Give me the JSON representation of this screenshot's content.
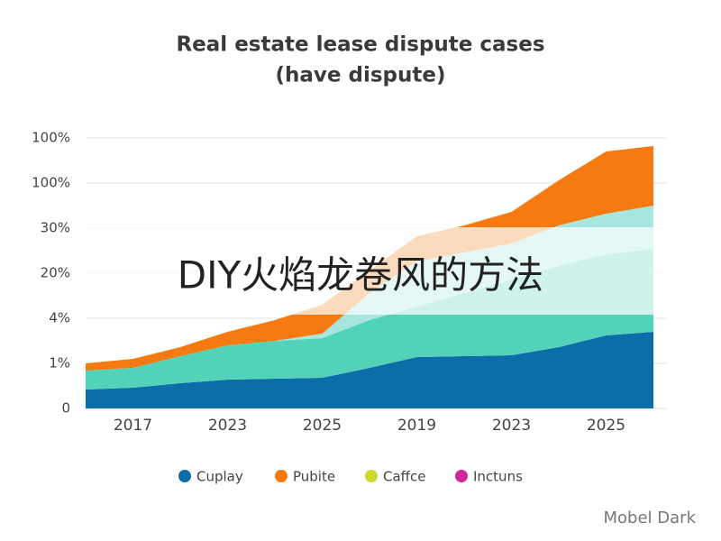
{
  "chart_data": {
    "type": "stacked_area",
    "title": [
      "Real estate lease dispute cases",
      "(have dispute)"
    ],
    "categories": [
      null,
      "2017",
      null,
      "2023",
      null,
      "2025",
      null,
      "2019",
      null,
      "2023",
      null,
      "2025",
      null
    ],
    "series": [
      {
        "name": "Cuplay",
        "color": "#0b6ea6",
        "legend_color": "#0b6ea6",
        "values": [
          0.42,
          0.46,
          0.56,
          0.64,
          0.66,
          0.68,
          0.9,
          1.14,
          1.16,
          1.18,
          1.36,
          1.62,
          1.7
        ]
      },
      {
        "name": "Pubite",
        "color": "#f57a12",
        "legend_color": "#f57a12",
        "values": [
          0.16,
          0.2,
          0.2,
          0.3,
          0.46,
          0.64,
          0.5,
          0.56,
          0.6,
          0.7,
          1.0,
          1.38,
          1.32
        ]
      },
      {
        "name": "Caffce",
        "color": "#52d3b9",
        "legend_color": "#cad830",
        "values": [
          0.42,
          0.44,
          0.6,
          0.76,
          0.84,
          0.88,
          1.06,
          1.12,
          1.4,
          1.68,
          1.8,
          1.8,
          1.84
        ]
      },
      {
        "name": "Inctuns",
        "color": "#a6e6df",
        "legend_color": "#d4259a",
        "values": [
          0,
          0,
          0,
          0,
          0,
          0.1,
          0.6,
          1.0,
          0.9,
          0.8,
          0.9,
          0.9,
          0.96
        ]
      }
    ],
    "stack_order": [
      0,
      2,
      3,
      1
    ],
    "ylim": [
      0,
      6
    ],
    "yticks": [
      0,
      {
        "value": 1,
        "label": "1%"
      },
      {
        "value": 2,
        "label": "4%"
      },
      {
        "value": 3,
        "label": "20%"
      },
      {
        "value": 4,
        "label": "30%"
      },
      {
        "value": 5,
        "label": "100%"
      },
      {
        "value": 6,
        "label": "100%"
      }
    ],
    "grid": true,
    "overlay_text": "DIY火焰龙卷风的方法",
    "watermark": "Mobel Dark"
  }
}
